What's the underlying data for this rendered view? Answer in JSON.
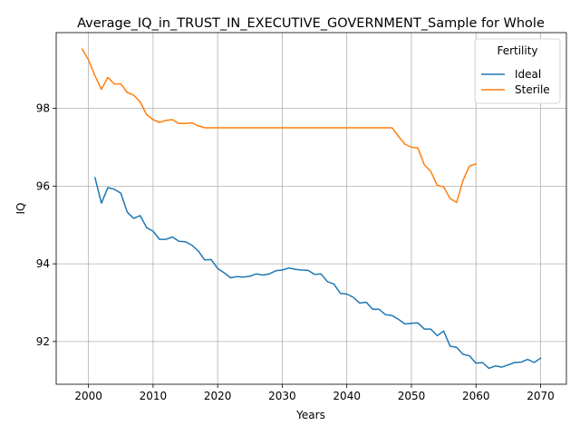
{
  "chart_data": {
    "type": "line",
    "title": "Average_IQ_in_TRUST_IN_EXECUTIVE_GOVERNMENT_Sample for Whole",
    "xlabel": "Years",
    "ylabel": "IQ",
    "xlim": [
      1995,
      2074
    ],
    "ylim": [
      90.9,
      99.95
    ],
    "xticks": [
      2000,
      2010,
      2020,
      2030,
      2040,
      2050,
      2060,
      2070
    ],
    "yticks": [
      92,
      94,
      96,
      98
    ],
    "grid": true,
    "legend": {
      "title": "Fertility",
      "position": "top-right"
    },
    "series": [
      {
        "name": "Ideal",
        "color": "#1f77b4",
        "x": [
          2001,
          2002,
          2003,
          2004,
          2005,
          2006,
          2007,
          2008,
          2009,
          2010,
          2011,
          2012,
          2013,
          2014,
          2015,
          2016,
          2017,
          2018,
          2019,
          2020,
          2021,
          2022,
          2023,
          2024,
          2025,
          2026,
          2027,
          2028,
          2029,
          2030,
          2031,
          2032,
          2033,
          2034,
          2035,
          2036,
          2037,
          2038,
          2039,
          2040,
          2041,
          2042,
          2043,
          2044,
          2045,
          2046,
          2047,
          2048,
          2049,
          2050,
          2051,
          2052,
          2053,
          2054,
          2055,
          2056,
          2057,
          2058,
          2059,
          2060,
          2061,
          2062,
          2063,
          2064,
          2065,
          2066,
          2067,
          2068,
          2069,
          2070
        ],
        "y": [
          96.22,
          95.56,
          95.96,
          95.92,
          95.82,
          95.33,
          95.17,
          95.24,
          94.93,
          94.84,
          94.63,
          94.63,
          94.69,
          94.58,
          94.57,
          94.48,
          94.33,
          94.1,
          94.11,
          93.88,
          93.77,
          93.64,
          93.67,
          93.66,
          93.68,
          93.74,
          93.71,
          93.74,
          93.82,
          93.84,
          93.89,
          93.86,
          93.84,
          93.83,
          93.73,
          93.74,
          93.54,
          93.48,
          93.24,
          93.22,
          93.14,
          92.99,
          93.01,
          92.83,
          92.83,
          92.69,
          92.67,
          92.57,
          92.45,
          92.47,
          92.48,
          92.32,
          92.32,
          92.15,
          92.27,
          91.88,
          91.85,
          91.67,
          91.63,
          91.44,
          91.46,
          91.31,
          91.37,
          91.34,
          91.4,
          91.46,
          91.47,
          91.54,
          91.46,
          91.57
        ]
      },
      {
        "name": "Sterile",
        "color": "#ff7f0e",
        "x": [
          1999,
          2000,
          2001,
          2002,
          2003,
          2004,
          2005,
          2006,
          2007,
          2008,
          2009,
          2010,
          2011,
          2012,
          2013,
          2014,
          2015,
          2016,
          2017,
          2018,
          2019,
          2020,
          2021,
          2022,
          2023,
          2024,
          2025,
          2026,
          2027,
          2028,
          2029,
          2030,
          2031,
          2032,
          2033,
          2034,
          2035,
          2036,
          2037,
          2038,
          2039,
          2040,
          2041,
          2042,
          2043,
          2044,
          2045,
          2046,
          2047,
          2048,
          2049,
          2050,
          2051,
          2052,
          2053,
          2054,
          2055,
          2056,
          2057,
          2058,
          2059,
          2060
        ],
        "y": [
          99.53,
          99.25,
          98.84,
          98.49,
          98.8,
          98.63,
          98.63,
          98.41,
          98.34,
          98.17,
          97.84,
          97.71,
          97.64,
          97.69,
          97.71,
          97.61,
          97.61,
          97.63,
          97.55,
          97.5,
          97.5,
          97.5,
          97.5,
          97.5,
          97.5,
          97.5,
          97.5,
          97.5,
          97.5,
          97.5,
          97.5,
          97.5,
          97.5,
          97.5,
          97.5,
          97.5,
          97.5,
          97.5,
          97.5,
          97.5,
          97.5,
          97.5,
          97.5,
          97.5,
          97.5,
          97.5,
          97.5,
          97.5,
          97.5,
          97.28,
          97.08,
          97.0,
          96.98,
          96.55,
          96.38,
          96.02,
          95.98,
          95.68,
          95.58,
          96.15,
          96.52,
          96.57
        ]
      }
    ]
  }
}
